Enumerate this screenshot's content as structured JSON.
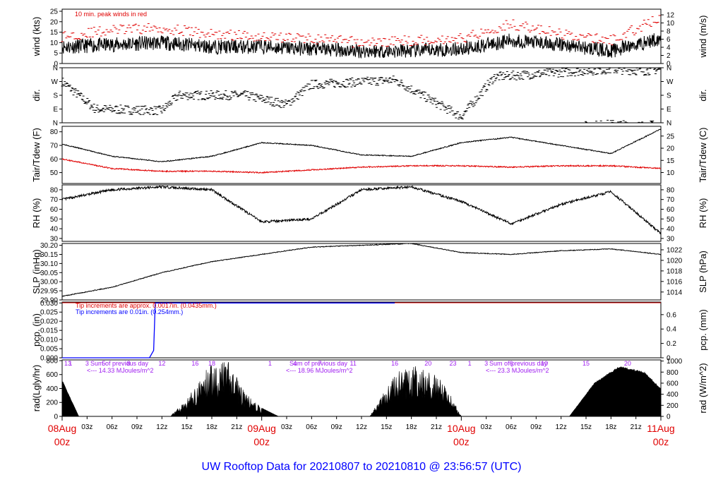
{
  "title": "UW Rooftop Data for 20210807  to  20210810 @ 23:56:57  (UTC)",
  "x_axis": {
    "hour_ticks": [
      "03z",
      "06z",
      "09z",
      "12z",
      "15z",
      "18z",
      "21z",
      "03z",
      "06z",
      "09z",
      "12z",
      "15z",
      "18z",
      "21z",
      "03z",
      "06z",
      "09z",
      "12z",
      "15z",
      "18z",
      "21z"
    ],
    "day_labels": [
      {
        "date": "08Aug",
        "hour": "00z"
      },
      {
        "date": "09Aug",
        "hour": "00z"
      },
      {
        "date": "10Aug",
        "hour": "00z"
      },
      {
        "date": "11Aug",
        "hour": "00z"
      }
    ]
  },
  "colors": {
    "red": "#e00000",
    "blue": "#0000ff",
    "purple": "#a020f0",
    "black": "#000000"
  },
  "panels": {
    "wind": {
      "ylabel_left": "wind (kts)",
      "ylabel_right": "wind (m/s)",
      "left_ticks": [
        "0",
        "5",
        "10",
        "15",
        "20",
        "25"
      ],
      "right_ticks": [
        "0",
        "2",
        "4",
        "6",
        "8",
        "10",
        "12"
      ],
      "note": "10 min. peak winds in red"
    },
    "dir": {
      "ylabel": "dir.",
      "ticks": [
        "N",
        "E",
        "S",
        "W",
        "N"
      ]
    },
    "temp": {
      "ylabel_left": "Tair/Tdew (F)",
      "ylabel_right": "Tair/Tdew (C)",
      "left_ticks": [
        "50",
        "60",
        "70",
        "80"
      ],
      "right_ticks": [
        "10",
        "15",
        "20",
        "25"
      ]
    },
    "rh": {
      "ylabel": "RH (%)",
      "ticks": [
        "30",
        "40",
        "50",
        "60",
        "70",
        "80"
      ]
    },
    "slp": {
      "ylabel_left": "SLP (inHg)",
      "ylabel_right": "SLP (hPa)",
      "left_ticks": [
        "29.90",
        "29.95",
        "30.00",
        "30.05",
        "30.10",
        "30.15",
        "30.20"
      ],
      "right_ticks": [
        "1014",
        "1016",
        "1018",
        "1020",
        "1022"
      ]
    },
    "pcp": {
      "ylabel_left": "pcp. (in)",
      "ylabel_right": "pcp. (mm)",
      "left_ticks": [
        "0.000",
        "0.005",
        "0.010",
        "0.015",
        "0.020",
        "0.025",
        "0.030"
      ],
      "right_ticks": [
        "0",
        "0.2",
        "0.4",
        "0.6"
      ],
      "note_red": "Tip increments are approx. 0.0017in. (0.0435mm.)",
      "note_blue": "Tip increments are 0.01in. (0.254mm.)"
    },
    "rad": {
      "ylabel_left": "rad(Lgly/hr)",
      "ylabel_right": "rad (W/m^2)",
      "left_ticks": [
        "0",
        "200",
        "400",
        "600",
        "800"
      ],
      "right_ticks": [
        "0",
        "200",
        "400",
        "600",
        "800",
        "1000"
      ],
      "sums": [
        {
          "head": "Sum of previous day",
          "value": "<--- 14.33 MJoules/m^2"
        },
        {
          "head": "Sum of previous day",
          "value": "<--- 18.96 MJoules/m^2"
        },
        {
          "head": "Sum of previous day",
          "value": "<--- 23.3 MJoules/m^2"
        }
      ],
      "hour_marks_day0": "13",
      "hour_marks_day1": [
        "1",
        "3",
        "5",
        "8",
        "12",
        "16",
        "18"
      ],
      "hour_marks_day2": [
        "1",
        "4",
        "7",
        "11",
        "16",
        "20",
        "23"
      ],
      "hour_marks_day3": [
        "1",
        "3",
        "6",
        "10",
        "15",
        "20"
      ]
    }
  },
  "chart_data": {
    "type": "line",
    "x_range_hours": [
      0,
      72
    ],
    "series": [
      {
        "name": "wind (kts)",
        "x": [
          0,
          6,
          12,
          18,
          24,
          30,
          36,
          42,
          48,
          54,
          60,
          66,
          72
        ],
        "values": [
          8,
          9,
          10,
          8,
          8,
          7,
          6,
          6,
          7,
          11,
          9,
          6,
          12
        ]
      },
      {
        "name": "10 min. peak winds in red",
        "x": [
          0,
          6,
          12,
          18,
          24,
          30,
          36,
          42,
          48,
          54,
          60,
          66,
          72
        ],
        "values": [
          13,
          16,
          17,
          14,
          13,
          12,
          10,
          11,
          12,
          19,
          14,
          11,
          22
        ]
      },
      {
        "name": "Tair (F)",
        "x": [
          0,
          6,
          12,
          18,
          24,
          30,
          36,
          42,
          48,
          54,
          60,
          66,
          72
        ],
        "values": [
          71,
          62,
          58,
          62,
          72,
          70,
          63,
          62,
          72,
          76,
          70,
          64,
          82
        ]
      },
      {
        "name": "Tdew (F)",
        "x": [
          0,
          6,
          12,
          18,
          24,
          30,
          36,
          42,
          48,
          54,
          60,
          66,
          72
        ],
        "values": [
          60,
          53,
          51,
          51,
          50,
          52,
          54,
          55,
          55,
          54,
          55,
          55,
          53
        ]
      },
      {
        "name": "RH (%)",
        "x": [
          0,
          6,
          12,
          18,
          24,
          30,
          36,
          42,
          48,
          54,
          60,
          66,
          72
        ],
        "values": [
          70,
          80,
          83,
          80,
          47,
          50,
          80,
          83,
          68,
          45,
          65,
          78,
          35
        ]
      },
      {
        "name": "SLP (inHg)",
        "x": [
          0,
          6,
          12,
          18,
          24,
          30,
          36,
          42,
          48,
          54,
          60,
          66,
          72
        ],
        "values": [
          29.92,
          29.97,
          30.05,
          30.11,
          30.15,
          30.19,
          30.2,
          30.21,
          30.16,
          30.15,
          30.17,
          30.18,
          30.15
        ]
      },
      {
        "name": "pcp. (in)",
        "x": [
          0,
          10.5,
          11,
          11.2,
          40
        ],
        "values": [
          0,
          0,
          0.004,
          0.03,
          0.03
        ]
      },
      {
        "name": "rad (W/m^2)",
        "x": [
          0,
          2,
          13,
          15,
          18,
          20,
          22,
          24,
          26,
          37,
          40,
          43,
          46,
          48,
          50,
          61,
          64,
          67,
          70,
          72
        ],
        "values": [
          650,
          0,
          0,
          300,
          950,
          950,
          400,
          150,
          0,
          0,
          750,
          900,
          600,
          0,
          0,
          0,
          600,
          900,
          800,
          500
        ]
      }
    ]
  }
}
